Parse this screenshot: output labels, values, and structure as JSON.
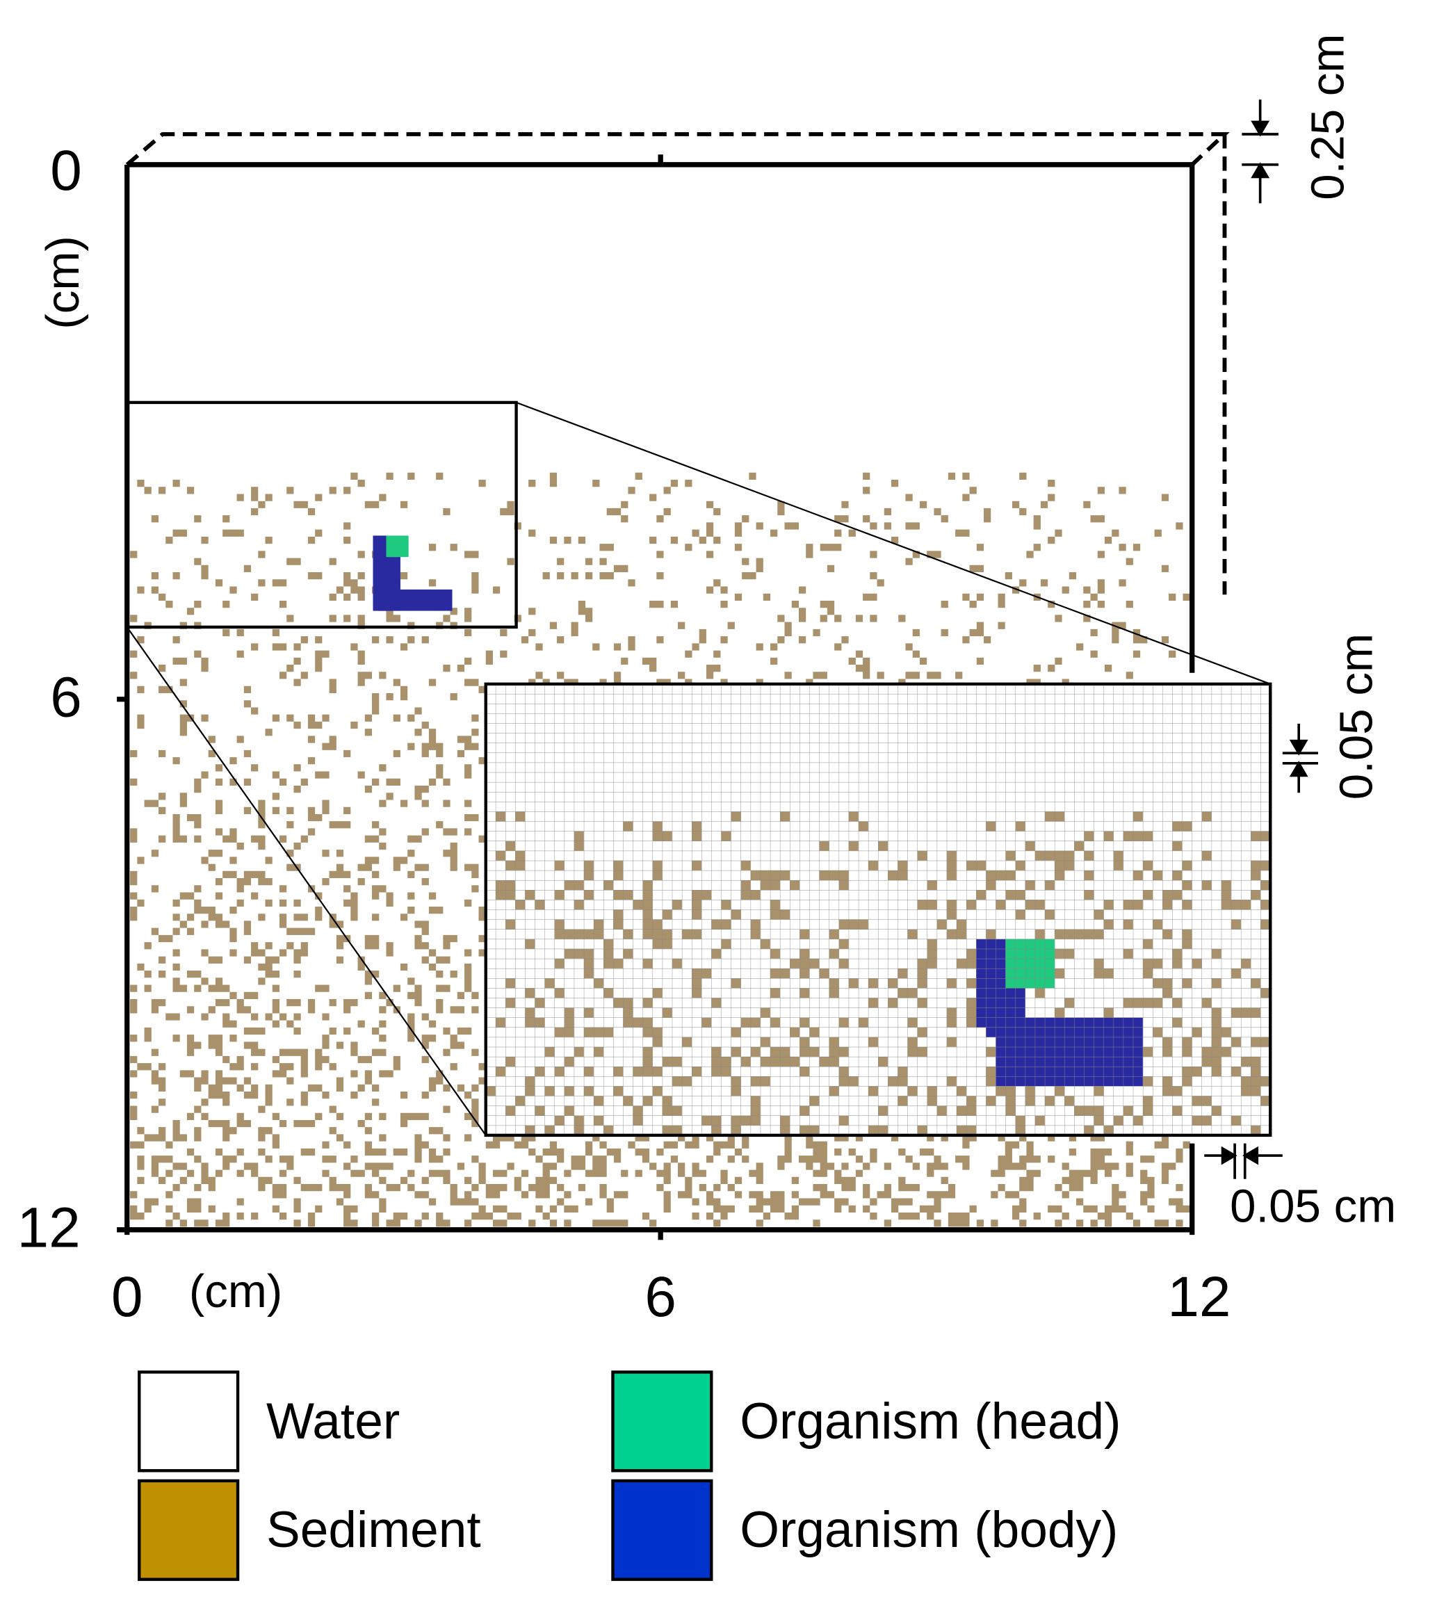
{
  "axes": {
    "y_ticks": [
      "0",
      "6",
      "12"
    ],
    "y_unit": "(cm)",
    "x_ticks": [
      "0",
      "6",
      "12"
    ],
    "x_unit": "(cm)"
  },
  "annotations": {
    "cell_depth": "0.25 cm",
    "cell_height": "0.05 cm",
    "cell_width": "0.05 cm"
  },
  "legend": [
    {
      "label": "Water",
      "color": "#ffffff"
    },
    {
      "label": "Sediment",
      "color": "#bf9000"
    },
    {
      "label": "Organism (head)",
      "color": "#00d090"
    },
    {
      "label": "Organism (body)",
      "color": "#0033cc"
    }
  ]
}
